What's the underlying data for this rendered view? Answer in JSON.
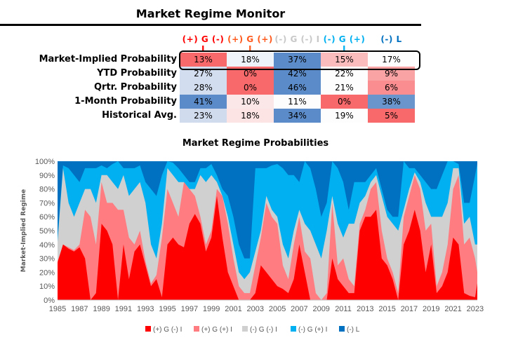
{
  "title": "Market Regime Monitor",
  "table": {
    "columns": [
      {
        "label": "(+) G (-) I",
        "color": "#ff0000"
      },
      {
        "label": "(+) G (+) I",
        "color": "#ff5a1e"
      },
      {
        "label": "(-) G (-) I",
        "color": "#c8c8c8"
      },
      {
        "label": "(-) G (+) I",
        "color": "#00b0f0"
      },
      {
        "label": "(-) L",
        "color": "#0070c0"
      }
    ],
    "rows": [
      {
        "label": "Market-Implied Probability",
        "values": [
          "13%",
          "18%",
          "37%",
          "15%",
          "17%"
        ],
        "colors": [
          "#f8696b",
          "#eef3fa",
          "#5b8bc8",
          "#fbbcbd",
          "#fdfdfe"
        ]
      },
      {
        "label": "YTD Probability",
        "values": [
          "27%",
          "0%",
          "42%",
          "22%",
          "9%"
        ],
        "colors": [
          "#d2ddef",
          "#f8696b",
          "#5b8bc8",
          "#fdfdfe",
          "#faa3a4"
        ]
      },
      {
        "label": "Qrtr. Probability",
        "values": [
          "28%",
          "0%",
          "46%",
          "21%",
          "6%"
        ],
        "colors": [
          "#d2ddef",
          "#f8696b",
          "#5b8bc8",
          "#fdfdfe",
          "#f98d8f"
        ]
      },
      {
        "label": "1-Month Probability",
        "values": [
          "41%",
          "10%",
          "11%",
          "0%",
          "38%"
        ],
        "colors": [
          "#5b8bc8",
          "#fce7e8",
          "#fdfdfe",
          "#f8696b",
          "#6a95cc"
        ]
      },
      {
        "label": "Historical Avg.",
        "values": [
          "23%",
          "18%",
          "34%",
          "19%",
          "5%"
        ],
        "colors": [
          "#d0dbee",
          "#fce3e4",
          "#5b8bc8",
          "#fdfdfe",
          "#f8696b"
        ]
      }
    ]
  },
  "chart_data": {
    "type": "area",
    "stacked": true,
    "title": "Market Regime Probabilities",
    "ylabel": "Market-Implied Regime",
    "xlabel": "",
    "ylim": [
      0,
      100
    ],
    "xlim": [
      1985,
      2023.2
    ],
    "yticks": [
      "0%",
      "10%",
      "20%",
      "30%",
      "40%",
      "50%",
      "60%",
      "70%",
      "80%",
      "90%",
      "100%"
    ],
    "xticks": [
      "1985",
      "1987",
      "1989",
      "1991",
      "1993",
      "1995",
      "1997",
      "1999",
      "2001",
      "2003",
      "2005",
      "2007",
      "2009",
      "2011",
      "2013",
      "2015",
      "2017",
      "2019",
      "2021",
      "2023"
    ],
    "legend_position": "bottom",
    "x": [
      1985,
      1985.5,
      1986,
      1986.5,
      1987,
      1987.5,
      1988,
      1988.5,
      1989,
      1989.5,
      1990,
      1990.5,
      1991,
      1991.5,
      1992,
      1992.5,
      1993,
      1993.5,
      1994,
      1994.5,
      1995,
      1995.5,
      1996,
      1996.5,
      1997,
      1997.5,
      1998,
      1998.5,
      1999,
      1999.5,
      2000,
      2000.5,
      2001,
      2001.5,
      2002,
      2002.5,
      2003,
      2003.5,
      2004,
      2004.5,
      2005,
      2005.5,
      2006,
      2006.5,
      2007,
      2007.5,
      2008,
      2008.5,
      2009,
      2009.5,
      2010,
      2010.5,
      2011,
      2011.5,
      2012,
      2012.5,
      2013,
      2013.5,
      2014,
      2014.5,
      2015,
      2015.5,
      2016,
      2016.5,
      2017,
      2017.5,
      2018,
      2018.5,
      2019,
      2019.5,
      2020,
      2020.5,
      2021,
      2021.5,
      2022,
      2022.5,
      2023,
      2023.2
    ],
    "series": [
      {
        "name": "(+) G (-) I",
        "color": "#ff0000",
        "cumulative": [
          27,
          40,
          37,
          35,
          38,
          30,
          0,
          5,
          55,
          50,
          40,
          0,
          40,
          15,
          35,
          40,
          25,
          10,
          15,
          2,
          40,
          45,
          40,
          38,
          55,
          62,
          55,
          35,
          45,
          75,
          45,
          20,
          10,
          0,
          0,
          0,
          5,
          25,
          20,
          15,
          10,
          8,
          5,
          15,
          40,
          20,
          0,
          0,
          0,
          0,
          30,
          15,
          10,
          5,
          5,
          50,
          60,
          60,
          65,
          30,
          25,
          15,
          0,
          40,
          50,
          65,
          50,
          20,
          40,
          5,
          10,
          20,
          45,
          40,
          5,
          3,
          2,
          12
        ]
      },
      {
        "name": "(+) G (+) I",
        "color": "#ff7c80",
        "cumulative": [
          28,
          40,
          38,
          36,
          40,
          65,
          60,
          40,
          85,
          70,
          70,
          65,
          65,
          45,
          40,
          50,
          28,
          12,
          18,
          45,
          80,
          70,
          60,
          85,
          80,
          75,
          60,
          40,
          50,
          80,
          75,
          55,
          30,
          10,
          5,
          5,
          25,
          45,
          70,
          60,
          55,
          25,
          15,
          40,
          60,
          35,
          30,
          5,
          0,
          5,
          70,
          25,
          30,
          15,
          10,
          55,
          65,
          80,
          85,
          50,
          30,
          20,
          5,
          60,
          75,
          90,
          80,
          50,
          55,
          10,
          20,
          40,
          80,
          90,
          40,
          45,
          30,
          20
        ]
      },
      {
        "name": "(-) G (-) I",
        "color": "#d0d0d0",
        "cumulative": [
          42,
          95,
          70,
          60,
          70,
          80,
          80,
          70,
          90,
          90,
          85,
          80,
          90,
          75,
          80,
          85,
          70,
          40,
          30,
          55,
          95,
          90,
          85,
          85,
          80,
          80,
          90,
          85,
          90,
          85,
          75,
          60,
          40,
          20,
          15,
          20,
          35,
          50,
          75,
          65,
          60,
          40,
          30,
          50,
          65,
          55,
          50,
          40,
          30,
          50,
          75,
          55,
          45,
          55,
          55,
          70,
          75,
          85,
          90,
          75,
          60,
          55,
          50,
          65,
          80,
          92,
          85,
          70,
          60,
          60,
          60,
          70,
          95,
          95,
          55,
          60,
          40,
          40
        ]
      },
      {
        "name": "(-) G (+) I",
        "color": "#00b0f0",
        "cumulative": [
          45,
          97,
          95,
          90,
          85,
          95,
          95,
          95,
          97,
          95,
          98,
          100,
          95,
          95,
          95,
          97,
          85,
          80,
          75,
          90,
          100,
          99,
          95,
          90,
          85,
          85,
          95,
          95,
          98,
          90,
          80,
          75,
          60,
          40,
          30,
          30,
          95,
          95,
          95,
          97,
          98,
          95,
          90,
          90,
          85,
          100,
          95,
          80,
          60,
          70,
          100,
          95,
          85,
          65,
          85,
          85,
          85,
          90,
          95,
          80,
          65,
          60,
          60,
          100,
          95,
          95,
          90,
          85,
          80,
          80,
          90,
          100,
          100,
          98,
          70,
          70,
          90,
          98
        ]
      },
      {
        "name": "(-) L",
        "color": "#0070c0",
        "cumulative": [
          100,
          100,
          100,
          100,
          100,
          100,
          100,
          100,
          100,
          100,
          100,
          100,
          100,
          100,
          100,
          100,
          100,
          100,
          100,
          100,
          100,
          100,
          100,
          100,
          100,
          100,
          100,
          100,
          100,
          100,
          100,
          100,
          100,
          100,
          100,
          100,
          100,
          100,
          100,
          100,
          100,
          100,
          100,
          100,
          100,
          100,
          100,
          100,
          100,
          100,
          100,
          100,
          100,
          100,
          100,
          100,
          100,
          100,
          100,
          100,
          100,
          100,
          100,
          100,
          100,
          100,
          100,
          100,
          100,
          100,
          100,
          100,
          100,
          100,
          100,
          100,
          100,
          100
        ]
      }
    ]
  }
}
